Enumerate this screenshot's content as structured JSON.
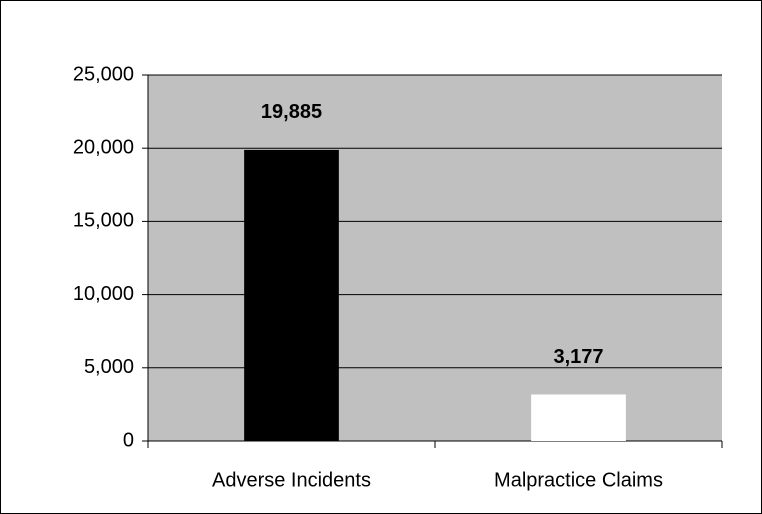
{
  "chart_data": {
    "type": "bar",
    "categories": [
      "Adverse Incidents",
      "Malpractice Claims"
    ],
    "values": [
      19885,
      3177
    ],
    "value_labels": [
      "19,885",
      "3,177"
    ],
    "colors": [
      "#000000",
      "#ffffff"
    ],
    "ylim": [
      0,
      25000
    ],
    "yticks": [
      0,
      {
        "value": 5000,
        "label": "5,000"
      },
      {
        "value": 10000,
        "label": "10,000"
      },
      {
        "value": 15000,
        "label": "15,000"
      },
      {
        "value": 20000,
        "label": "20,000"
      },
      {
        "value": 25000,
        "label": "25,000"
      }
    ],
    "grid": true
  }
}
